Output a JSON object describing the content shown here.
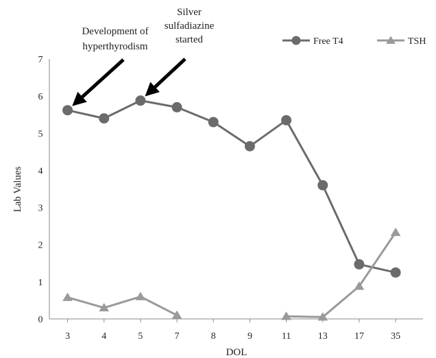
{
  "chart_data": {
    "type": "line",
    "title": "",
    "xlabel": "DOL",
    "ylabel": "Lab Values",
    "categories": [
      "3",
      "4",
      "5",
      "7",
      "8",
      "9",
      "11",
      "13",
      "17",
      "35"
    ],
    "ylim": [
      0,
      7
    ],
    "yticks": [
      0,
      1,
      2,
      3,
      4,
      5,
      6,
      7
    ],
    "grid": false,
    "legend_position": "top-right",
    "series": [
      {
        "name": "Free T4",
        "marker": "circle",
        "color": "#6b6b6b",
        "values": [
          5.62,
          5.4,
          5.88,
          5.7,
          5.3,
          4.65,
          5.35,
          3.6,
          1.47,
          1.25
        ]
      },
      {
        "name": "TSH",
        "marker": "triangle",
        "color": "#9a9a9a",
        "values": [
          0.58,
          0.3,
          0.6,
          0.1,
          null,
          null,
          0.07,
          0.05,
          0.88,
          2.33
        ]
      }
    ],
    "annotations": [
      {
        "lines": [
          "Development  of",
          "hyperthyrodism"
        ],
        "category": "3",
        "value": 5.62
      },
      {
        "lines": [
          "Silver",
          "sulfadiazine",
          "started"
        ],
        "category": "5",
        "value": 5.88
      }
    ]
  }
}
